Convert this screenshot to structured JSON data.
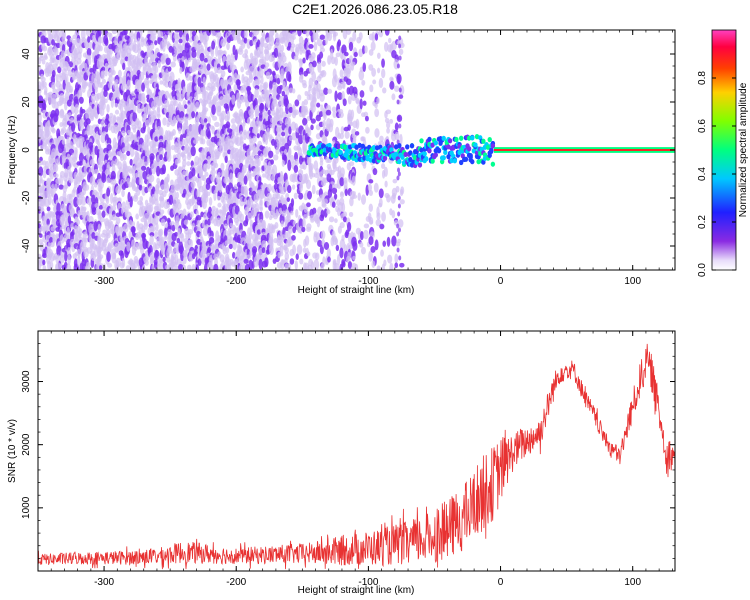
{
  "title": "C2E1.2026.086.23.05.R18",
  "colors": {
    "snr_line": "#e83232",
    "speckle_light": "#d2bff2",
    "speckle_dark": "#7b2ff0",
    "axis": "#000000"
  },
  "chart_data": [
    {
      "type": "heatmap",
      "xlabel": "Height of straight line (km)",
      "ylabel": "Frequency (Hz)",
      "xlim": [
        -350,
        132
      ],
      "ylim": [
        -50,
        50
      ],
      "x_ticks": [
        -300,
        -200,
        -100,
        0,
        100
      ],
      "x_tick_labels": [
        "-300",
        "-200",
        "-100",
        "0",
        "100"
      ],
      "y_ticks": [
        -40,
        -20,
        0,
        20,
        40
      ],
      "y_tick_labels": [
        "-40",
        "-20",
        "0",
        "20",
        "40"
      ],
      "colorbar": {
        "label": "Normalized spectral amplitude",
        "range": [
          0,
          1
        ],
        "ticks": [
          0.0,
          0.2,
          0.4,
          0.6,
          0.8
        ],
        "tick_labels": [
          "0.0",
          "0.2",
          "0.4",
          "0.6",
          "0.8"
        ],
        "colormap": "rainbow (violet → blue → cyan → green → yellow → red → magenta)"
      },
      "description_points": {
        "noise_region_x": [
          -350,
          -75
        ],
        "echo_onset_x": -145,
        "echo_center_freq_hz": 0,
        "strong_band_x": [
          -5,
          132
        ]
      }
    },
    {
      "type": "line",
      "xlabel": "Height of straight line (km)",
      "ylabel": "SNR (10 * v/v)",
      "xlim": [
        -350,
        132
      ],
      "ylim": [
        0,
        3800
      ],
      "x_ticks": [
        -300,
        -200,
        -100,
        0,
        100
      ],
      "x_tick_labels": [
        "-300",
        "-200",
        "-100",
        "0",
        "100"
      ],
      "y_ticks": [
        1000,
        2000,
        3000
      ],
      "y_tick_labels": [
        "1000",
        "2000",
        "3000"
      ],
      "envelope": {
        "x": [
          -350,
          -320,
          -290,
          -260,
          -240,
          -215,
          -200,
          -170,
          -145,
          -130,
          -110,
          -90,
          -70,
          -55,
          -40,
          -25,
          -15,
          -5,
          0,
          5,
          10,
          20,
          30,
          40,
          45,
          55,
          65,
          70,
          80,
          90,
          100,
          110,
          115,
          125,
          132
        ],
        "mean": [
          180,
          200,
          210,
          230,
          300,
          260,
          240,
          260,
          280,
          300,
          340,
          380,
          450,
          520,
          650,
          900,
          1200,
          1400,
          1600,
          1750,
          1900,
          2050,
          2200,
          2900,
          3150,
          3200,
          2700,
          2500,
          2050,
          1800,
          2600,
          3350,
          3100,
          1900,
          1800
        ],
        "spread": [
          90,
          100,
          110,
          130,
          180,
          150,
          130,
          150,
          170,
          220,
          260,
          300,
          350,
          400,
          480,
          550,
          600,
          600,
          550,
          400,
          300,
          250,
          250,
          220,
          180,
          150,
          150,
          150,
          130,
          150,
          250,
          300,
          300,
          250,
          250
        ]
      }
    }
  ]
}
